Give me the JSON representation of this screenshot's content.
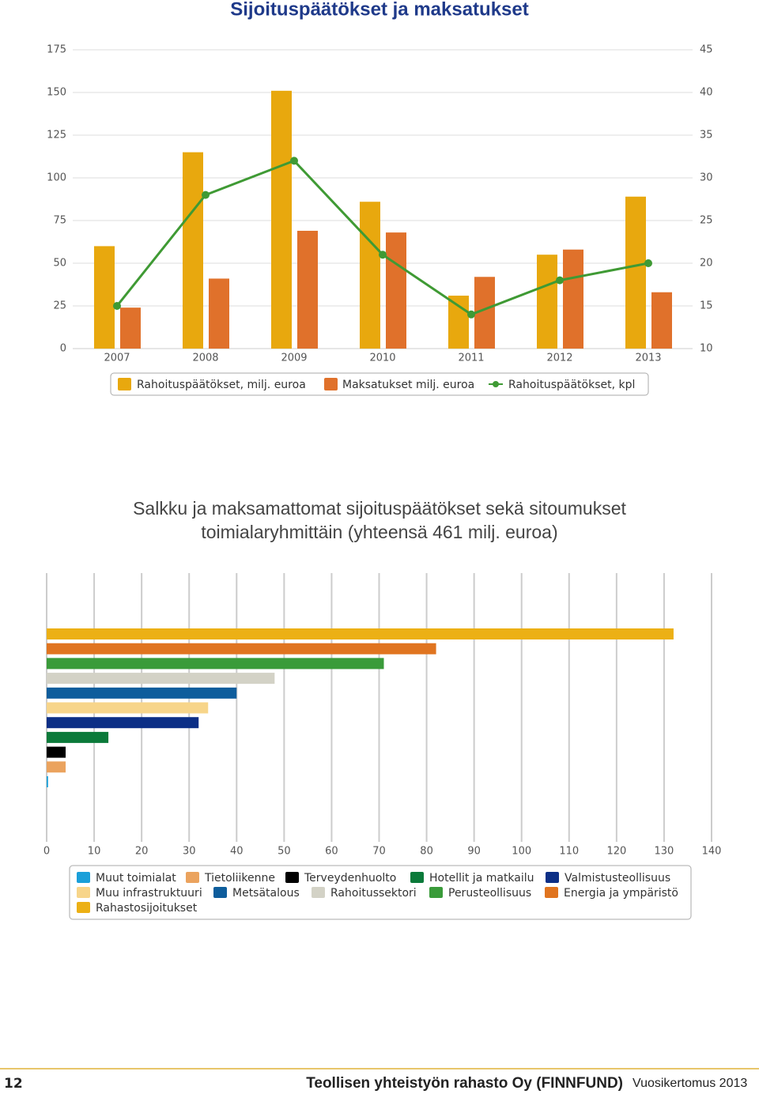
{
  "chart_data": [
    {
      "type": "bar",
      "title": "Sijoituspäätökset ja maksatukset",
      "categories": [
        "2007",
        "2008",
        "2009",
        "2010",
        "2011",
        "2012",
        "2013"
      ],
      "series": [
        {
          "name": "Rahoituspäätökset, milj. euroa",
          "color": "#e8a80e",
          "values": [
            60,
            115,
            151,
            86,
            31,
            55,
            89
          ]
        },
        {
          "name": "Maksatukset milj. euroa",
          "color": "#e0712b",
          "values": [
            24,
            41,
            69,
            68,
            42,
            58,
            33
          ]
        },
        {
          "name": "Rahoituspäätökset, kpl",
          "type": "line",
          "axis": "y2",
          "color": "#3f9a34",
          "values": [
            15,
            28,
            32,
            21,
            14,
            18,
            20
          ]
        }
      ],
      "ylim": [
        0,
        175
      ],
      "yticks": [
        0,
        25,
        50,
        75,
        100,
        125,
        150,
        175
      ],
      "y2lim": [
        10,
        45
      ],
      "y2ticks": [
        10,
        15,
        20,
        25,
        30,
        35,
        40,
        45
      ],
      "grid": true
    },
    {
      "type": "hbar",
      "title": "Salkku ja maksamattomat sijoituspäätökset sekä sitoumukset toimialaryhmittäin (yhteensä 461 milj. euroa)",
      "series": [
        {
          "name": "Muut toimialat",
          "color": "#1a9fd9",
          "values": [
            0.3
          ]
        },
        {
          "name": "Tietoliikenne",
          "color": "#eba35e",
          "values": [
            4
          ]
        },
        {
          "name": "Terveydenhuolto",
          "color": "#000000",
          "values": [
            4
          ]
        },
        {
          "name": "Hotellit ja matkailu",
          "color": "#0b7a3a",
          "values": [
            13
          ]
        },
        {
          "name": "Valmistusteollisuus",
          "color": "#0c2f86",
          "values": [
            32
          ]
        },
        {
          "name": "Muu infrastruktuuri",
          "color": "#f7d58a",
          "values": [
            34
          ]
        },
        {
          "name": "Metsätalous",
          "color": "#0e5d9c",
          "values": [
            40
          ]
        },
        {
          "name": "Rahoitussektori",
          "color": "#d3d2c6",
          "values": [
            48
          ]
        },
        {
          "name": "Perusteollisuus",
          "color": "#3a9b3a",
          "values": [
            71
          ]
        },
        {
          "name": "Energia ja ympäristö",
          "color": "#e0741f",
          "values": [
            82
          ]
        },
        {
          "name": "Rahastosijoitukset",
          "color": "#ecb015",
          "values": [
            132
          ]
        }
      ],
      "xlim": [
        0,
        140
      ],
      "xticks": [
        0,
        10,
        20,
        30,
        40,
        50,
        60,
        70,
        80,
        90,
        100,
        110,
        120,
        130,
        140
      ],
      "grid": true
    }
  ],
  "footer": {
    "page": "12",
    "company": "Teollisen yhteistyön rahasto Oy (FINNFUND)",
    "report": "Vuosikertomus 2013"
  }
}
